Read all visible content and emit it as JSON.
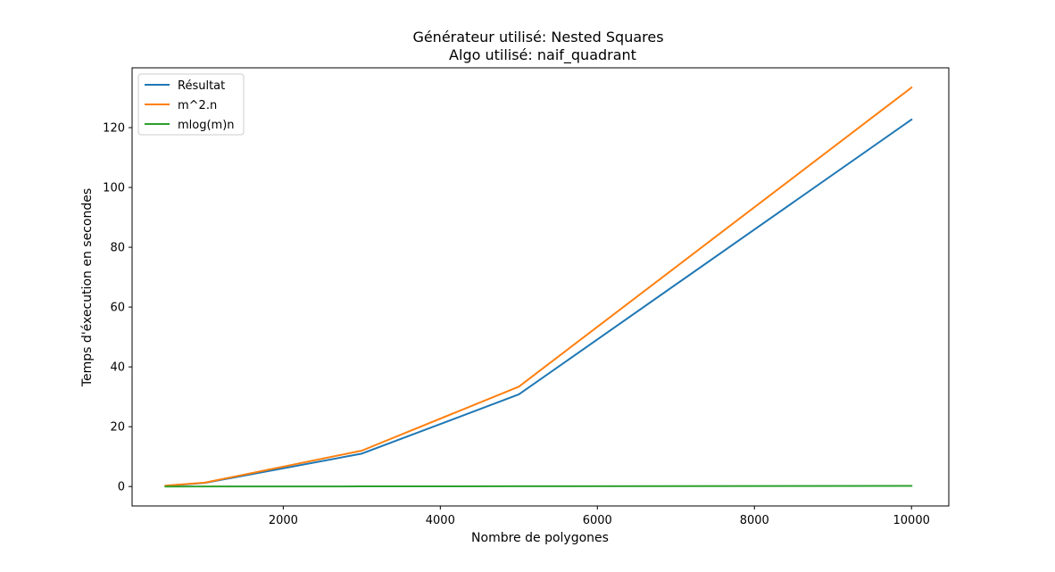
{
  "chart_data": {
    "type": "line",
    "title": "Générateur utilisé: Nested Squares",
    "subtitle": "Algo utilisé: naif_quadrant",
    "xlabel": "Nombre de polygones",
    "ylabel": "Temps d'éxecution en secondes",
    "xlim": [
      75,
      10475
    ],
    "ylim": [
      -6.5,
      140
    ],
    "xticks": [
      2000,
      4000,
      6000,
      8000,
      10000
    ],
    "yticks": [
      0,
      20,
      40,
      60,
      80,
      100,
      120
    ],
    "grid": false,
    "legend_position": "top-left",
    "x": [
      500,
      1000,
      3000,
      5000,
      10000
    ],
    "series": [
      {
        "name": "Résultat",
        "color": "#1f77b4",
        "values": [
          0.2,
          1.2,
          11.0,
          30.8,
          122.7
        ]
      },
      {
        "name": "m^2.n",
        "color": "#ff7f0e",
        "values": [
          0.3,
          1.3,
          12.0,
          33.4,
          133.4
        ]
      },
      {
        "name": "mlog(m)n",
        "color": "#2ca02c",
        "values": [
          0.0,
          0.01,
          0.05,
          0.09,
          0.2
        ]
      }
    ]
  }
}
